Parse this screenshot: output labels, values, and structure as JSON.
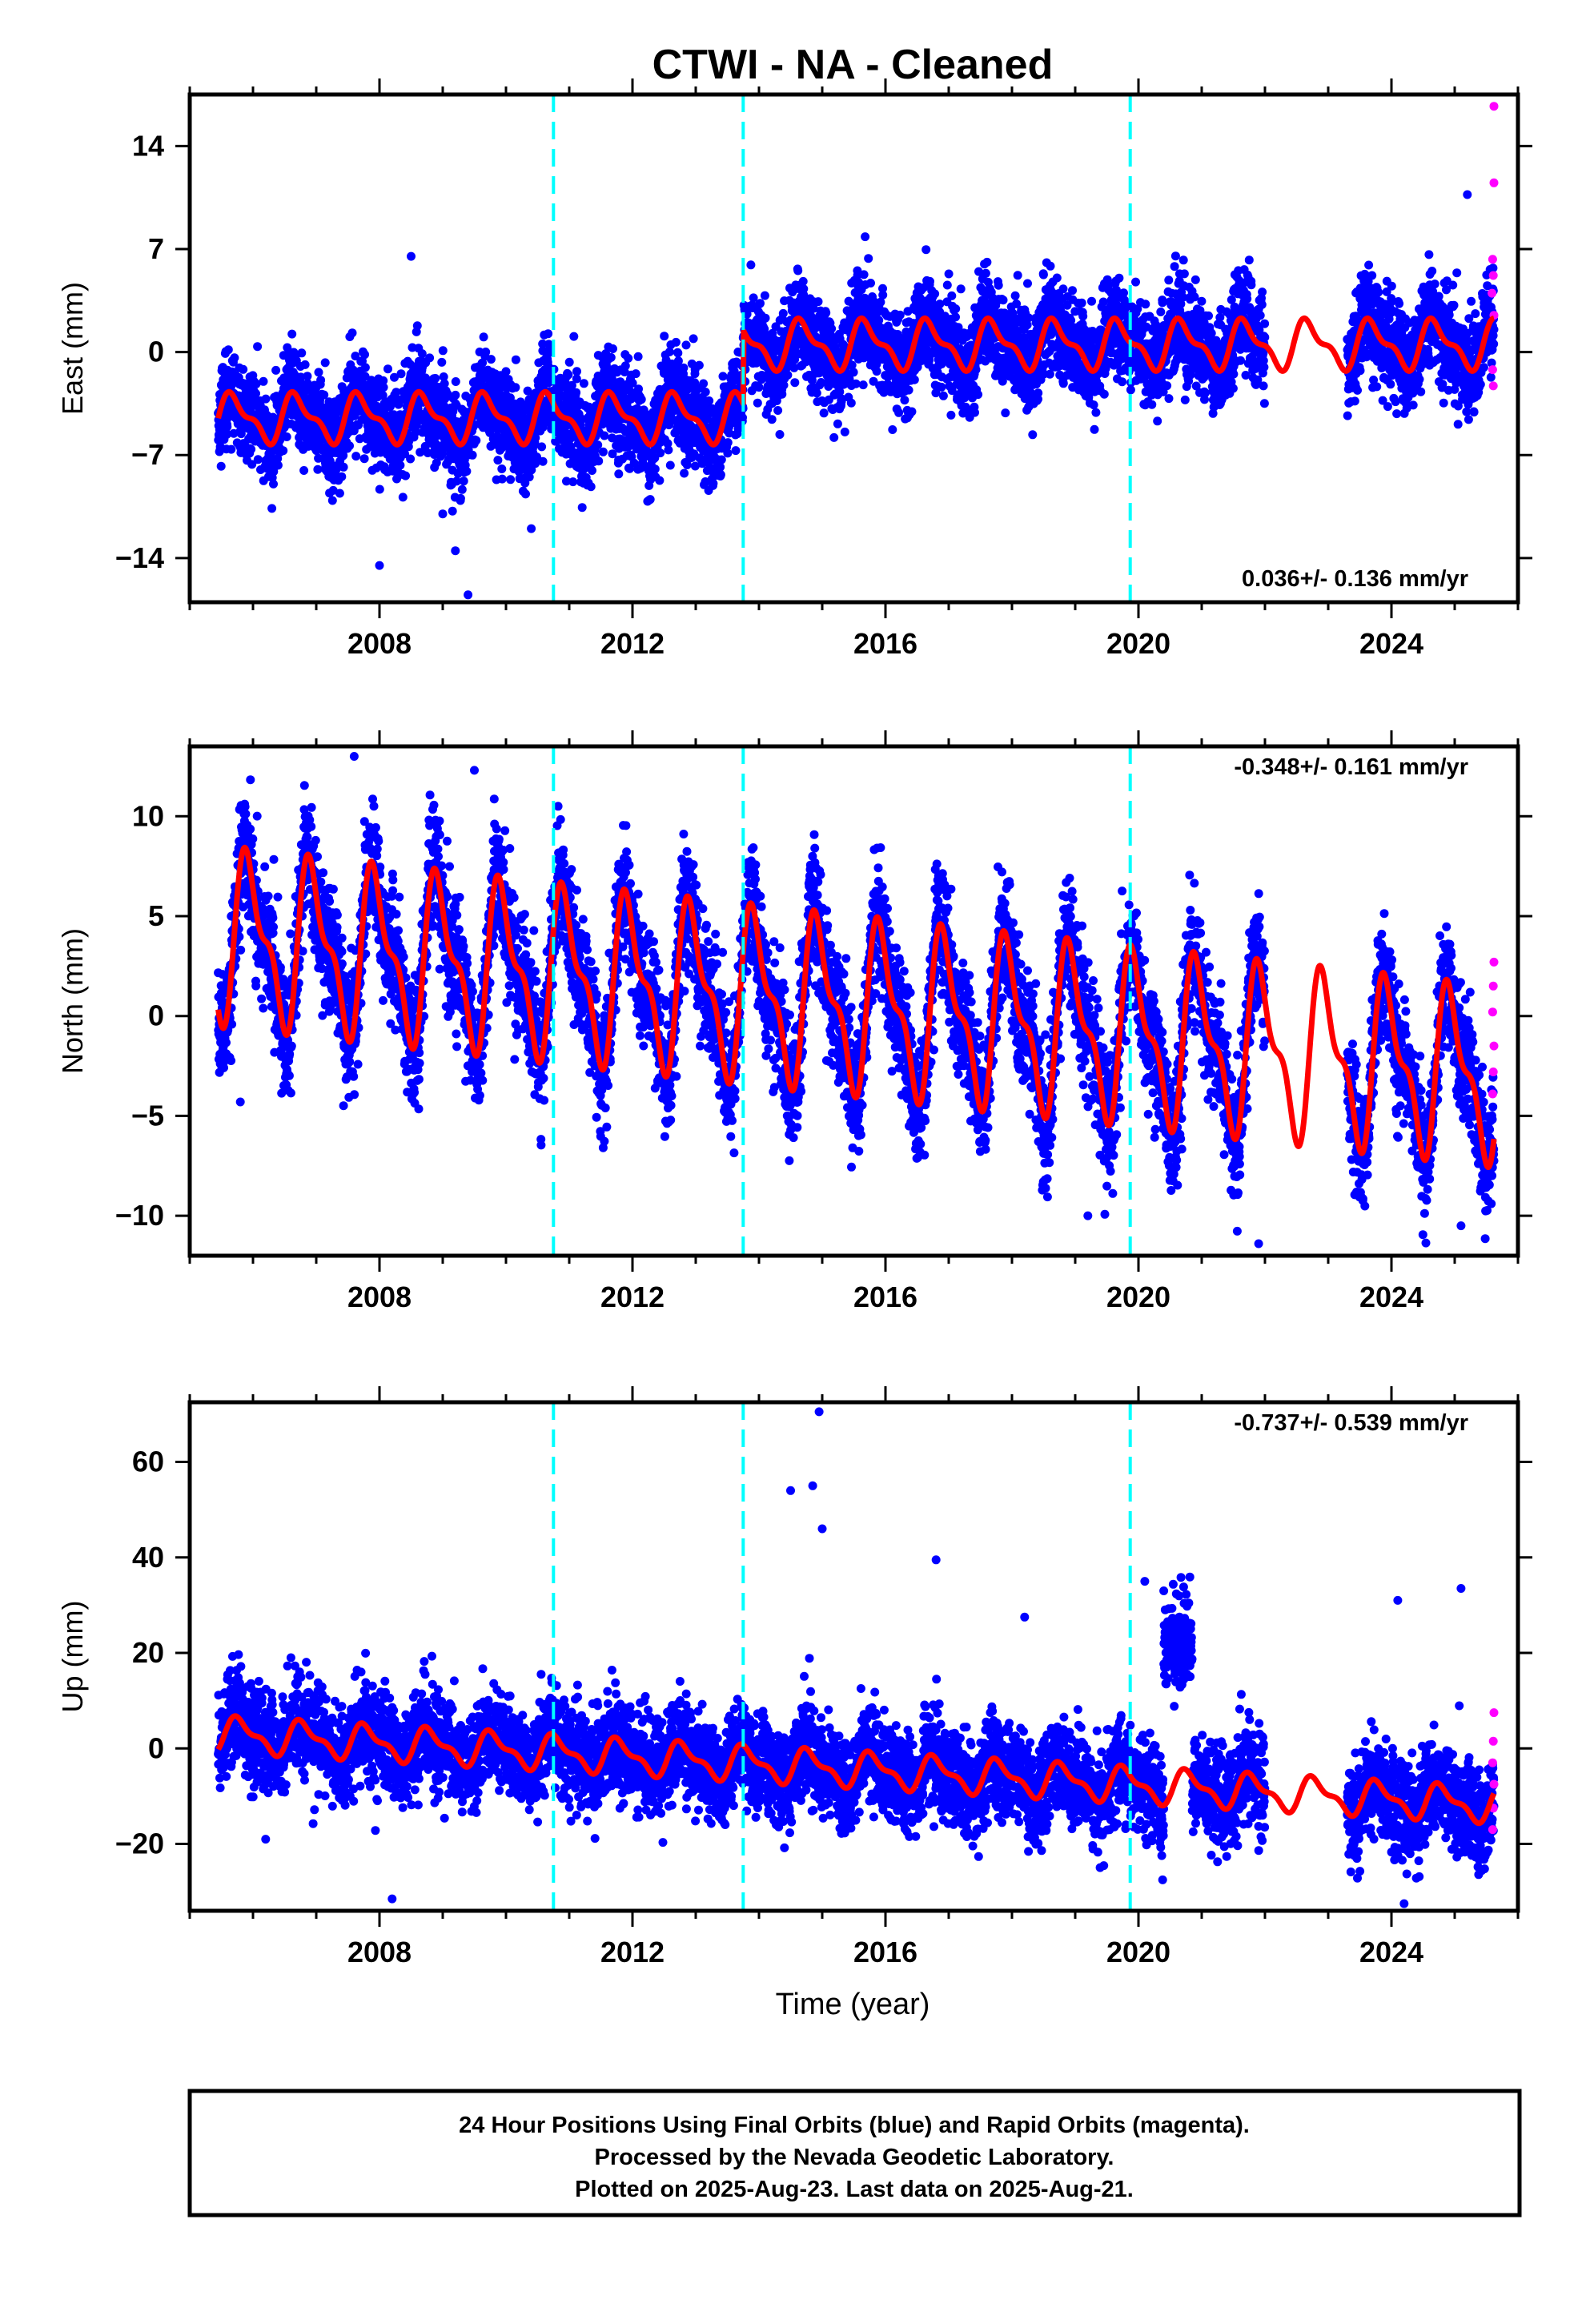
{
  "title": "CTWI  - NA - Cleaned",
  "xlabel": "Time (year)",
  "footer": {
    "line1": "24 Hour Positions Using Final Orbits (blue) and Rapid Orbits (magenta).",
    "line2": "Processed by the Nevada Geodetic Laboratory.",
    "line3": "Plotted on 2025-Aug-23. Last data on 2025-Aug-21."
  },
  "colors": {
    "final_points": "#0000ff",
    "rapid_points": "#ff00ff",
    "model": "#ff0000",
    "steps": "#00ffff",
    "frame": "#000000"
  },
  "chart_data": [
    {
      "type": "scatter",
      "ylabel": "East (mm)",
      "rate_text": "0.036+/- 0.136 mm/yr",
      "rate_position": "bottom-right",
      "xlim": [
        2005.0,
        2026.0
      ],
      "ylim": [
        -17,
        17.5
      ],
      "xticks": [
        2008,
        2012,
        2016,
        2020,
        2024
      ],
      "xtick_labels": [
        "2008",
        "2012",
        "2016",
        "2020",
        "2024"
      ],
      "yticks": [
        14,
        7,
        0,
        -7,
        -14
      ],
      "ytick_labels": [
        "14",
        "7",
        "0",
        "−7",
        "−14"
      ],
      "grid": false,
      "step_epochs": [
        2010.75,
        2013.75,
        2019.87
      ],
      "data_span": [
        2005.45,
        2025.62
      ],
      "data_gap": [
        2022.0,
        2023.3
      ],
      "model": {
        "offset": -4.5,
        "steps": [
          [
            2013.75,
            5.0
          ]
        ],
        "season_amp": 1.8,
        "season_phase": 0.55,
        "noise_sd": 1.6
      },
      "outliers": [
        {
          "x": 2008.5,
          "y": 6.5
        },
        {
          "x": 2008.0,
          "y": -14.5
        },
        {
          "x": 2009.4,
          "y": -16.5
        },
        {
          "x": 2009.0,
          "y": -11.0
        },
        {
          "x": 2009.2,
          "y": -13.5
        },
        {
          "x": 2010.4,
          "y": -12.0
        },
        {
          "x": 2025.2,
          "y": 10.7
        }
      ],
      "rapid_points": [
        {
          "x": 2025.62,
          "y": 16.7
        },
        {
          "x": 2025.62,
          "y": 11.5
        },
        {
          "x": 2025.6,
          "y": 6.3
        },
        {
          "x": 2025.61,
          "y": 5.2
        },
        {
          "x": 2025.59,
          "y": 4.0
        },
        {
          "x": 2025.62,
          "y": 2.5
        },
        {
          "x": 2025.6,
          "y": -1.2
        },
        {
          "x": 2025.61,
          "y": -2.3
        }
      ]
    },
    {
      "type": "scatter",
      "ylabel": "North (mm)",
      "rate_text": "-0.348+/- 0.161 mm/yr",
      "rate_position": "top-right",
      "xlim": [
        2005.0,
        2026.0
      ],
      "ylim": [
        -12.0,
        13.5
      ],
      "xticks": [
        2008,
        2012,
        2016,
        2020,
        2024
      ],
      "xtick_labels": [
        "2008",
        "2012",
        "2016",
        "2020",
        "2024"
      ],
      "yticks": [
        10,
        5,
        0,
        -5,
        -10
      ],
      "ytick_labels": [
        "10",
        "5",
        "0",
        "−5",
        "−10"
      ],
      "grid": false,
      "step_epochs": [
        2010.75,
        2013.75,
        2019.87
      ],
      "data_span": [
        2005.45,
        2025.62
      ],
      "data_gap": [
        2022.0,
        2023.3
      ],
      "model": {
        "offset": 4.0,
        "trend": -0.348,
        "trend_ref": 2005.45,
        "season_amp": 4.6,
        "season_phase": 0.3,
        "noise_sd": 1.5
      },
      "outliers": [
        {
          "x": 2007.6,
          "y": 13.0
        },
        {
          "x": 2009.5,
          "y": 12.3
        },
        {
          "x": 2021.9,
          "y": -11.4
        },
        {
          "x": 2025.1,
          "y": -10.5
        },
        {
          "x": 2019.2,
          "y": -10.0
        },
        {
          "x": 2005.8,
          "y": -4.3
        }
      ],
      "rapid_points": [
        {
          "x": 2025.62,
          "y": 2.7
        },
        {
          "x": 2025.61,
          "y": 1.5
        },
        {
          "x": 2025.6,
          "y": 0.2
        },
        {
          "x": 2025.62,
          "y": -1.5
        },
        {
          "x": 2025.61,
          "y": -2.8
        },
        {
          "x": 2025.6,
          "y": -3.9
        }
      ]
    },
    {
      "type": "scatter",
      "ylabel": "Up (mm)",
      "rate_text": "-0.737+/- 0.539 mm/yr",
      "rate_position": "top-right",
      "xlim": [
        2005.0,
        2026.0
      ],
      "ylim": [
        -34,
        72.5
      ],
      "xticks": [
        2008,
        2012,
        2016,
        2020,
        2024
      ],
      "xtick_labels": [
        "2008",
        "2012",
        "2016",
        "2020",
        "2024"
      ],
      "yticks": [
        60,
        40,
        20,
        0,
        -20
      ],
      "ytick_labels": [
        "60",
        "40",
        "20",
        "0",
        "−20"
      ],
      "grid": false,
      "step_epochs": [
        2010.75,
        2013.75,
        2019.87
      ],
      "data_span": [
        2005.45,
        2025.62
      ],
      "data_gap": [
        2022.0,
        2023.3
      ],
      "model": {
        "offset": 3.0,
        "trend": -0.737,
        "trend_ref": 2005.45,
        "season_amp": 4.0,
        "season_phase": 0.45,
        "noise_sd": 5.0,
        "anomaly": [
          2020.4,
          2020.85,
          22.0,
          5.0
        ]
      },
      "outliers": [
        {
          "x": 2014.95,
          "y": 70.5
        },
        {
          "x": 2014.5,
          "y": 54.0
        },
        {
          "x": 2014.85,
          "y": 55.0
        },
        {
          "x": 2015.0,
          "y": 46.0
        },
        {
          "x": 2016.8,
          "y": 39.5
        },
        {
          "x": 2020.1,
          "y": 35.0
        },
        {
          "x": 2020.4,
          "y": 33.0
        },
        {
          "x": 2024.1,
          "y": 31.0
        },
        {
          "x": 2025.1,
          "y": 33.5
        },
        {
          "x": 2008.2,
          "y": -31.5
        },
        {
          "x": 2024.2,
          "y": -32.5
        },
        {
          "x": 2018.2,
          "y": 27.5
        },
        {
          "x": 2006.2,
          "y": -19.0
        }
      ],
      "rapid_points": [
        {
          "x": 2025.62,
          "y": 7.5
        },
        {
          "x": 2025.61,
          "y": 1.5
        },
        {
          "x": 2025.6,
          "y": -3.0
        },
        {
          "x": 2025.62,
          "y": -7.5
        },
        {
          "x": 2025.61,
          "y": -12.5
        },
        {
          "x": 2025.6,
          "y": -17.0
        }
      ]
    }
  ]
}
